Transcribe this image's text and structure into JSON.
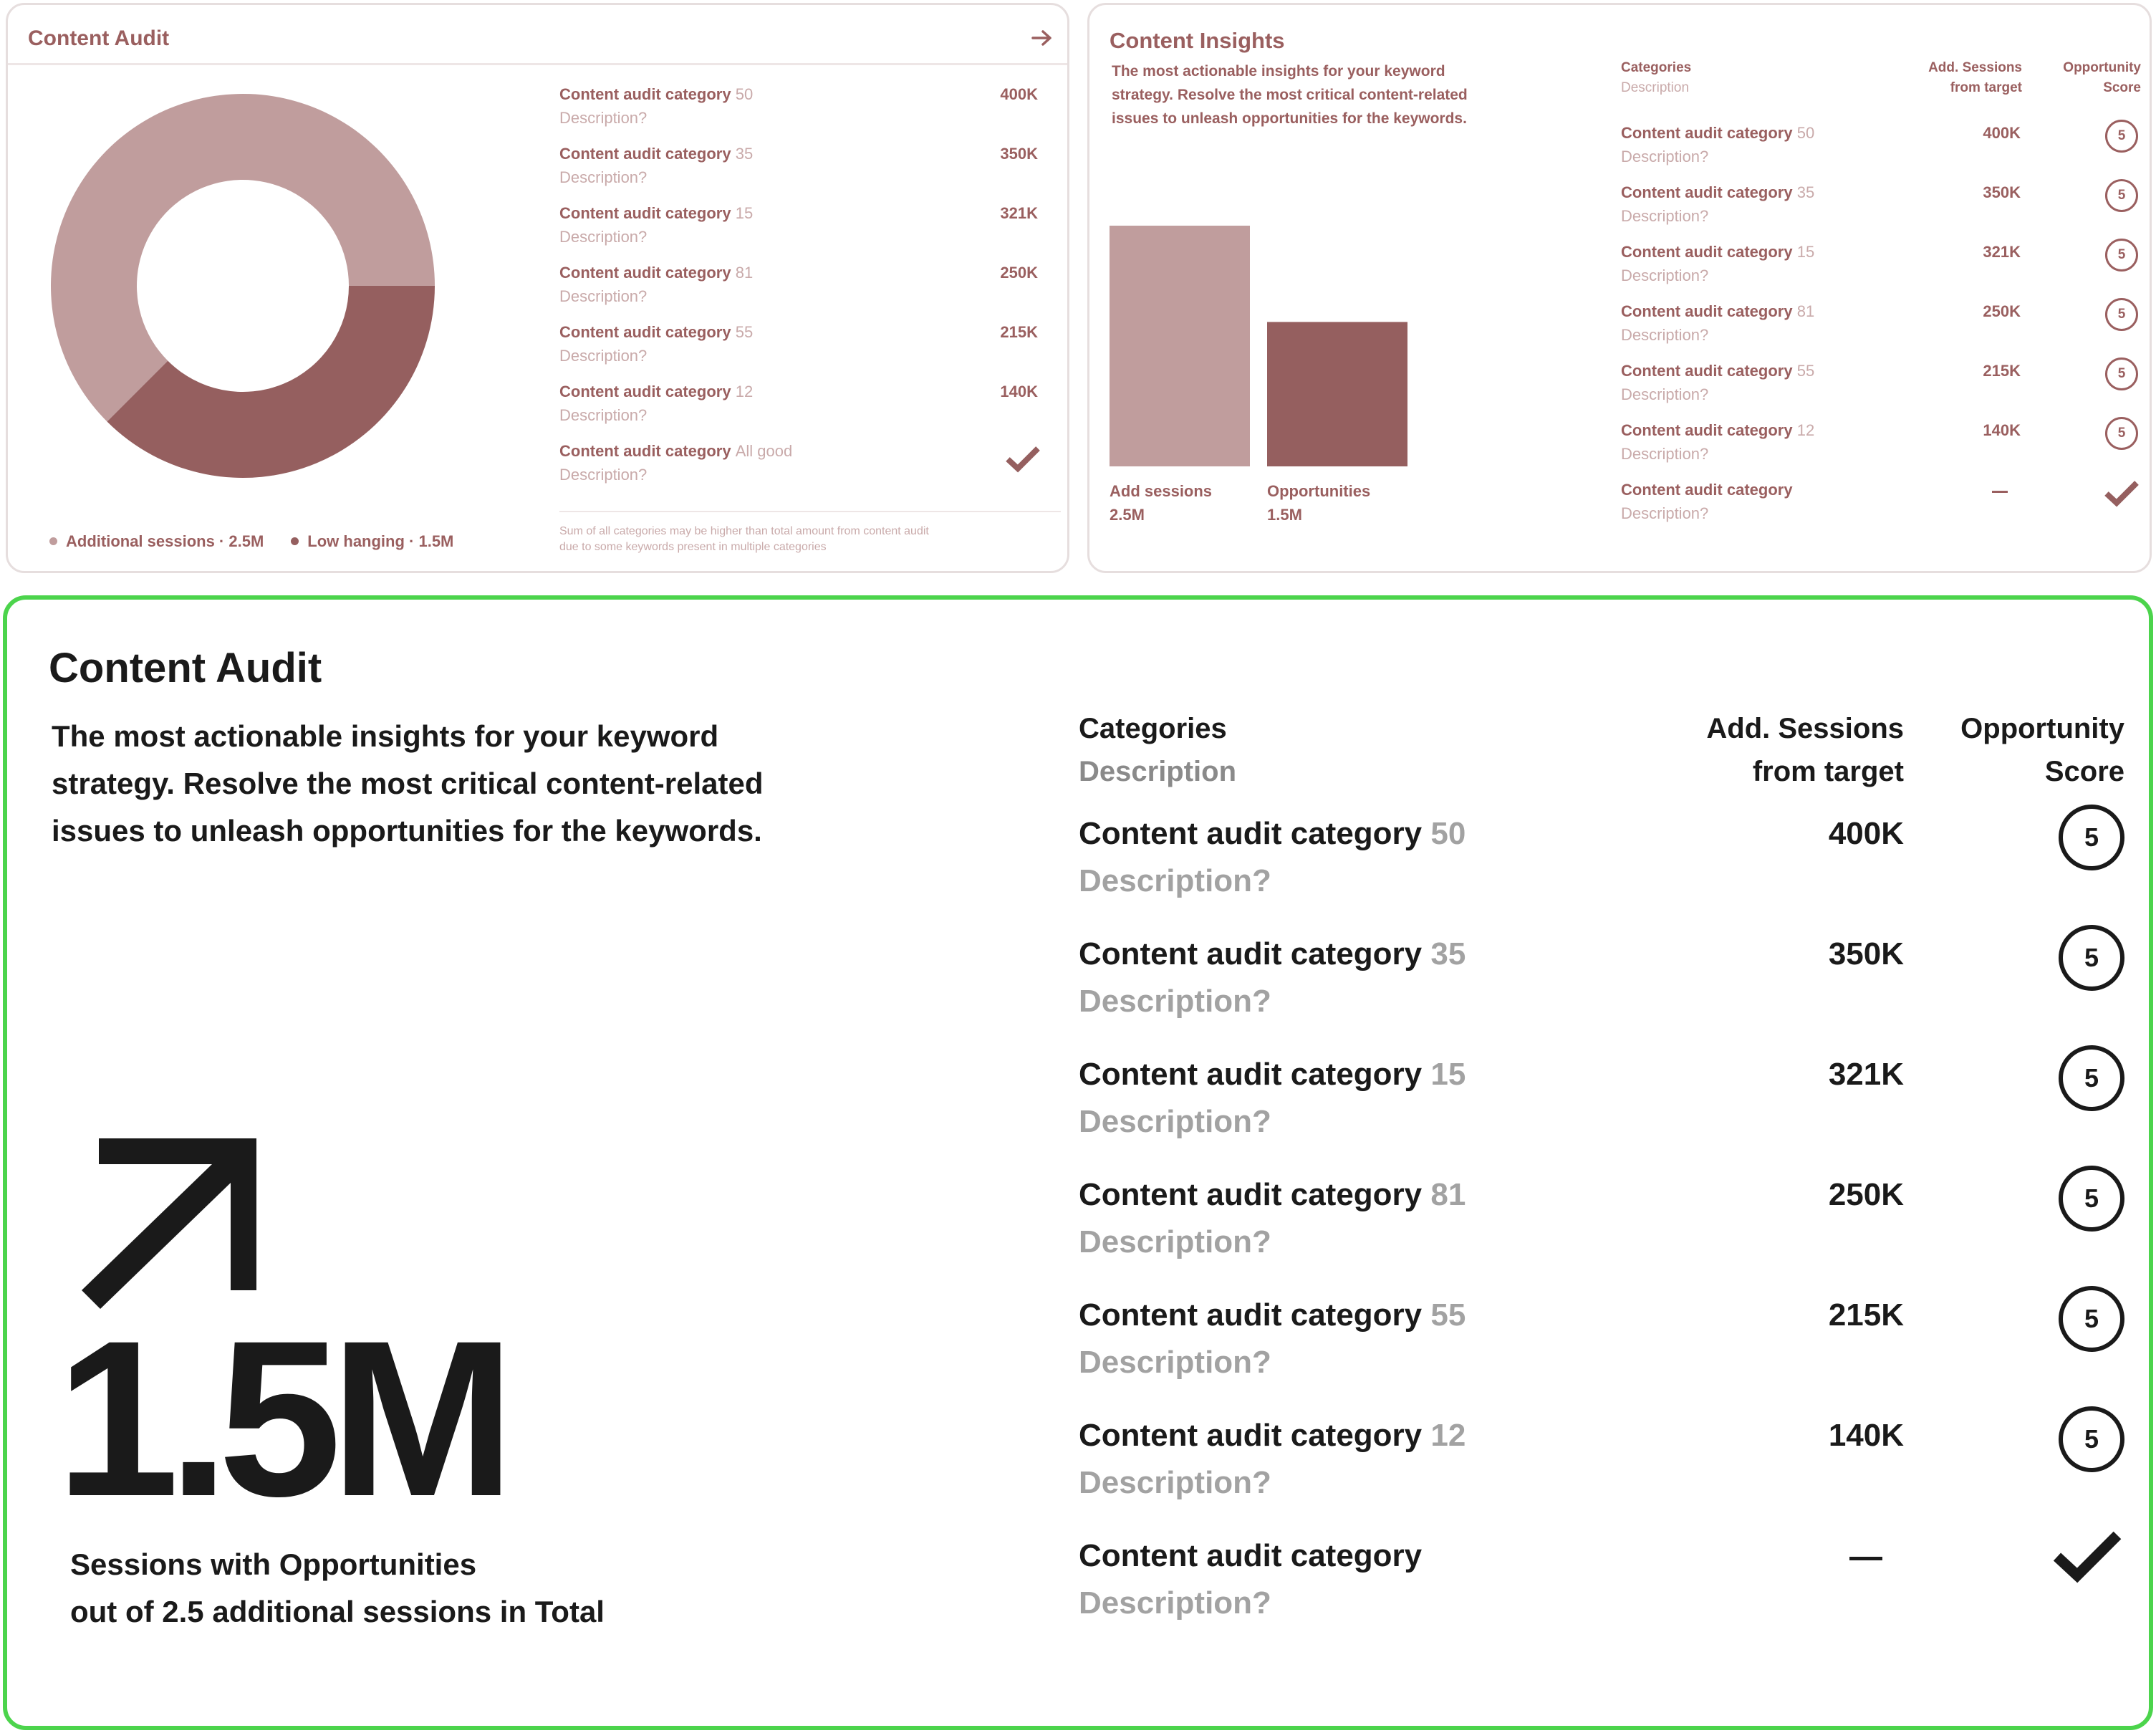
{
  "colors": {
    "light": "#c09d9d",
    "dark": "#955f5f",
    "text_dark": "#9a5f5f",
    "text_light": "#c9aaaa",
    "highlight": "#4cd44c"
  },
  "audit_card": {
    "title": "Content Audit",
    "arrow_icon": "arrow-right-icon",
    "items": [
      {
        "label": "Content audit category",
        "number": "50",
        "desc": "Description?",
        "value": "400K"
      },
      {
        "label": "Content audit category",
        "number": "35",
        "desc": "Description?",
        "value": "350K"
      },
      {
        "label": "Content audit category",
        "number": "15",
        "desc": "Description?",
        "value": "321K"
      },
      {
        "label": "Content audit category",
        "number": "81",
        "desc": "Description?",
        "value": "250K"
      },
      {
        "label": "Content audit category",
        "number": "55",
        "desc": "Description?",
        "value": "215K"
      },
      {
        "label": "Content audit category",
        "number": "12",
        "desc": "Description?",
        "value": "140K"
      },
      {
        "label": "Content audit category",
        "number": "All good",
        "desc": "Description?",
        "value": ""
      }
    ],
    "legend": [
      {
        "label": "Additional sessions · 2.5M"
      },
      {
        "label": "Low hanging · 1.5M"
      }
    ],
    "footnote_line1": "Sum of all categories may be higher than total amount from content audit",
    "footnote_line2": "due to some keywords present in multiple categories"
  },
  "chart_data": [
    {
      "type": "pie",
      "title": "Content Audit",
      "categories": [
        "Additional sessions",
        "Low hanging"
      ],
      "values": [
        2.5,
        1.5
      ],
      "units": "M",
      "legend": "bottom"
    },
    {
      "type": "bar",
      "title": "Content Insights",
      "categories": [
        "Add sessions",
        "Opportunities"
      ],
      "values": [
        2.5,
        1.5
      ],
      "units": "M",
      "ylim": [
        0,
        2.5
      ]
    }
  ],
  "insights_card": {
    "title": "Content Insights",
    "description": "The most actionable insights for your keyword strategy. Resolve  the most critical content-related issues to unleash opportunities for the keywords.",
    "bars": [
      {
        "label": "Add sessions",
        "value_text": "2.5M"
      },
      {
        "label": "Opportunities",
        "value_text": "1.5M"
      }
    ],
    "headers": {
      "categories": "Categories",
      "description": "Description",
      "sessions_line1": "Add. Sessions",
      "sessions_line2": "from target",
      "score_line1": "Opportunity",
      "score_line2": "Score"
    },
    "rows": [
      {
        "label": "Content audit category",
        "number": "50",
        "desc": "Description?",
        "value": "400K",
        "score": "5"
      },
      {
        "label": "Content audit category",
        "number": "35",
        "desc": "Description?",
        "value": "350K",
        "score": "5"
      },
      {
        "label": "Content audit category",
        "number": "15",
        "desc": "Description?",
        "value": "321K",
        "score": "5"
      },
      {
        "label": "Content audit category",
        "number": "81",
        "desc": "Description?",
        "value": "250K",
        "score": "5"
      },
      {
        "label": "Content audit category",
        "number": "55",
        "desc": "Description?",
        "value": "215K",
        "score": "5"
      },
      {
        "label": "Content audit category",
        "number": "12",
        "desc": "Description?",
        "value": "140K",
        "score": "5"
      },
      {
        "label": "Content audit category",
        "number": "",
        "desc": "Description?",
        "value": "",
        "score": ""
      }
    ]
  },
  "main_card": {
    "title": "Content Audit",
    "description": "The most actionable insights for your keyword strategy. Resolve  the most critical content-related issues to unleash opportunities for the keywords.",
    "big_number": "1.5M",
    "caption_line1": "Sessions with Opportunities",
    "caption_line2": "out of 2.5 additional sessions in Total",
    "headers": {
      "categories": "Categories",
      "description": "Description",
      "sessions_line1": "Add. Sessions",
      "sessions_line2": "from target",
      "score_line1": "Opportunity",
      "score_line2": "Score"
    },
    "rows": [
      {
        "label": "Content audit category",
        "number": "50",
        "desc": "Description?",
        "value": "400K",
        "score": "5"
      },
      {
        "label": "Content audit category",
        "number": "35",
        "desc": "Description?",
        "value": "350K",
        "score": "5"
      },
      {
        "label": "Content audit category",
        "number": "15",
        "desc": "Description?",
        "value": "321K",
        "score": "5"
      },
      {
        "label": "Content audit category",
        "number": "81",
        "desc": "Description?",
        "value": "250K",
        "score": "5"
      },
      {
        "label": "Content audit category",
        "number": "55",
        "desc": "Description?",
        "value": "215K",
        "score": "5"
      },
      {
        "label": "Content audit category",
        "number": "12",
        "desc": "Description?",
        "value": "140K",
        "score": "5"
      },
      {
        "label": "Content audit category",
        "number": "",
        "desc": "Description?",
        "value": "",
        "score": ""
      }
    ]
  }
}
